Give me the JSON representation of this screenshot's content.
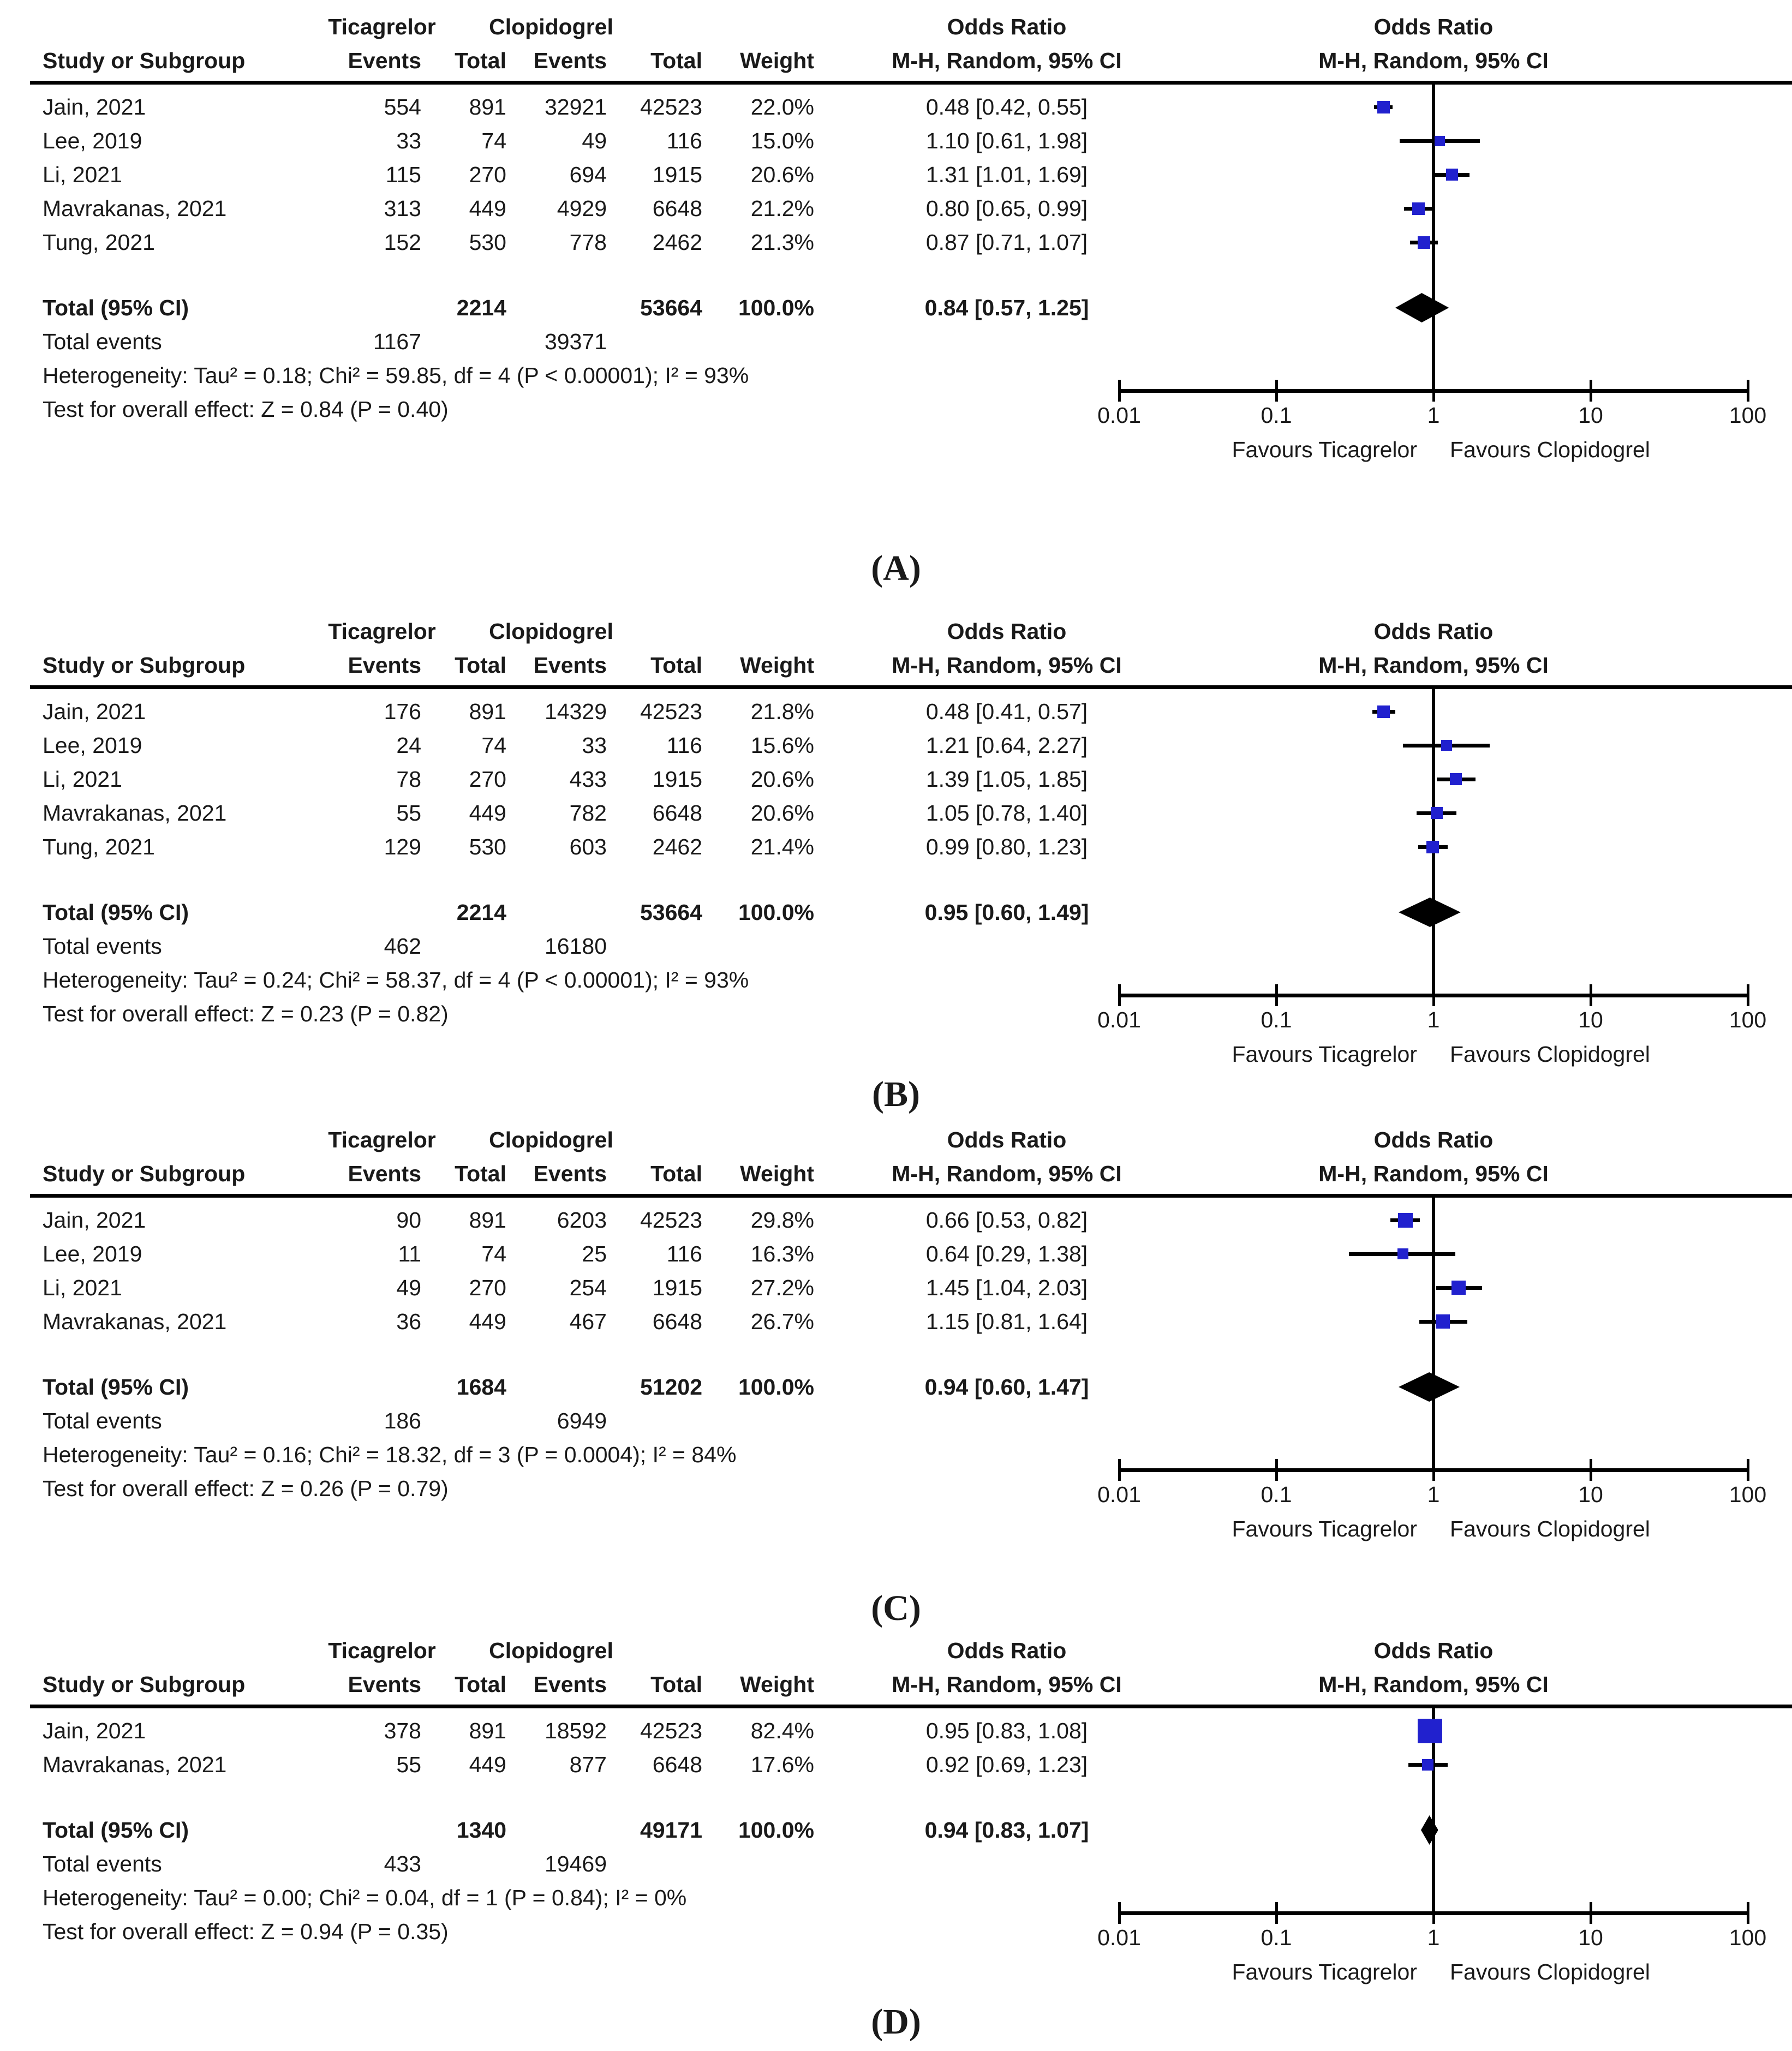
{
  "chart_data": {
    "type": "scatter",
    "subtype": "forest-plot-meta-analysis",
    "x_scale": "log10",
    "x_range": [
      0.01,
      100
    ],
    "x_ticks": [
      "0.01",
      "0.1",
      "1",
      "10",
      "100"
    ],
    "x_tick_values": [
      0.01,
      0.1,
      1,
      10,
      100
    ],
    "colors": {
      "study_square": "#2121ce",
      "summary_diamond": "#000000",
      "lines": "#000000",
      "text": "#1a1a1a"
    },
    "legend_position": "none",
    "grid": false,
    "panels": [
      {
        "label": "(A)",
        "header": {
          "group1": "Ticagrelor",
          "group2": "Clopidogrel",
          "or_col_title": "Odds Ratio",
          "or_plot_title": "Odds Ratio",
          "study_col": "Study or Subgroup",
          "events_col1": "Events",
          "total_col1": "Total",
          "events_col2": "Events",
          "total_col2": "Total",
          "weight_col": "Weight",
          "method_col": "M-H, Random, 95% CI",
          "method_plot": "M-H, Random, 95% CI"
        },
        "studies": [
          {
            "name": "Jain, 2021",
            "tic_events": "554",
            "tic_total": "891",
            "clo_events": "32921",
            "clo_total": "42523",
            "weight_text": "22.0%",
            "weight_pct": 22.0,
            "or": 0.48,
            "ci_low": 0.42,
            "ci_high": 0.55,
            "or_text": "0.48 [0.42, 0.55]"
          },
          {
            "name": "Lee, 2019",
            "tic_events": "33",
            "tic_total": "74",
            "clo_events": "49",
            "clo_total": "116",
            "weight_text": "15.0%",
            "weight_pct": 15.0,
            "or": 1.1,
            "ci_low": 0.61,
            "ci_high": 1.98,
            "or_text": "1.10 [0.61, 1.98]"
          },
          {
            "name": "Li, 2021",
            "tic_events": "115",
            "tic_total": "270",
            "clo_events": "694",
            "clo_total": "1915",
            "weight_text": "20.6%",
            "weight_pct": 20.6,
            "or": 1.31,
            "ci_low": 1.01,
            "ci_high": 1.69,
            "or_text": "1.31 [1.01, 1.69]"
          },
          {
            "name": "Mavrakanas, 2021",
            "tic_events": "313",
            "tic_total": "449",
            "clo_events": "4929",
            "clo_total": "6648",
            "weight_text": "21.2%",
            "weight_pct": 21.2,
            "or": 0.8,
            "ci_low": 0.65,
            "ci_high": 0.99,
            "or_text": "0.80 [0.65, 0.99]"
          },
          {
            "name": "Tung, 2021",
            "tic_events": "152",
            "tic_total": "530",
            "clo_events": "778",
            "clo_total": "2462",
            "weight_text": "21.3%",
            "weight_pct": 21.3,
            "or": 0.87,
            "ci_low": 0.71,
            "ci_high": 1.07,
            "or_text": "0.87 [0.71, 1.07]"
          }
        ],
        "total": {
          "label": "Total (95% CI)",
          "tic_total": "2214",
          "clo_total": "53664",
          "weight_text": "100.0%",
          "or": 0.84,
          "ci_low": 0.57,
          "ci_high": 1.25,
          "or_text": "0.84 [0.57, 1.25]"
        },
        "total_events": {
          "label": "Total events",
          "tic": "1167",
          "clo": "39371"
        },
        "heterogeneity": "Heterogeneity: Tau² = 0.18; Chi² = 59.85, df = 4 (P < 0.00001); I² = 93%",
        "overall_effect": "Test for overall effect: Z = 0.84 (P = 0.40)",
        "favours_left": "Favours Ticagrelor",
        "favours_right": "Favours Clopidogrel"
      },
      {
        "label": "(B)",
        "header": {
          "group1": "Ticagrelor",
          "group2": "Clopidogrel",
          "or_col_title": "Odds Ratio",
          "or_plot_title": "Odds Ratio",
          "study_col": "Study or Subgroup",
          "events_col1": "Events",
          "total_col1": "Total",
          "events_col2": "Events",
          "total_col2": "Total",
          "weight_col": "Weight",
          "method_col": "M-H, Random, 95% CI",
          "method_plot": "M-H, Random, 95% CI"
        },
        "studies": [
          {
            "name": "Jain, 2021",
            "tic_events": "176",
            "tic_total": "891",
            "clo_events": "14329",
            "clo_total": "42523",
            "weight_text": "21.8%",
            "weight_pct": 21.8,
            "or": 0.48,
            "ci_low": 0.41,
            "ci_high": 0.57,
            "or_text": "0.48 [0.41, 0.57]"
          },
          {
            "name": "Lee, 2019",
            "tic_events": "24",
            "tic_total": "74",
            "clo_events": "33",
            "clo_total": "116",
            "weight_text": "15.6%",
            "weight_pct": 15.6,
            "or": 1.21,
            "ci_low": 0.64,
            "ci_high": 2.27,
            "or_text": "1.21 [0.64, 2.27]"
          },
          {
            "name": "Li, 2021",
            "tic_events": "78",
            "tic_total": "270",
            "clo_events": "433",
            "clo_total": "1915",
            "weight_text": "20.6%",
            "weight_pct": 20.6,
            "or": 1.39,
            "ci_low": 1.05,
            "ci_high": 1.85,
            "or_text": "1.39 [1.05, 1.85]"
          },
          {
            "name": "Mavrakanas, 2021",
            "tic_events": "55",
            "tic_total": "449",
            "clo_events": "782",
            "clo_total": "6648",
            "weight_text": "20.6%",
            "weight_pct": 20.6,
            "or": 1.05,
            "ci_low": 0.78,
            "ci_high": 1.4,
            "or_text": "1.05 [0.78, 1.40]"
          },
          {
            "name": "Tung, 2021",
            "tic_events": "129",
            "tic_total": "530",
            "clo_events": "603",
            "clo_total": "2462",
            "weight_text": "21.4%",
            "weight_pct": 21.4,
            "or": 0.99,
            "ci_low": 0.8,
            "ci_high": 1.23,
            "or_text": "0.99 [0.80, 1.23]"
          }
        ],
        "total": {
          "label": "Total (95% CI)",
          "tic_total": "2214",
          "clo_total": "53664",
          "weight_text": "100.0%",
          "or": 0.95,
          "ci_low": 0.6,
          "ci_high": 1.49,
          "or_text": "0.95 [0.60, 1.49]"
        },
        "total_events": {
          "label": "Total events",
          "tic": "462",
          "clo": "16180"
        },
        "heterogeneity": "Heterogeneity: Tau² = 0.24; Chi² = 58.37, df = 4 (P < 0.00001); I² = 93%",
        "overall_effect": "Test for overall effect: Z = 0.23 (P = 0.82)",
        "favours_left": "Favours Ticagrelor",
        "favours_right": "Favours Clopidogrel"
      },
      {
        "label": "(C)",
        "header": {
          "group1": "Ticagrelor",
          "group2": "Clopidogrel",
          "or_col_title": "Odds Ratio",
          "or_plot_title": "Odds Ratio",
          "study_col": "Study or Subgroup",
          "events_col1": "Events",
          "total_col1": "Total",
          "events_col2": "Events",
          "total_col2": "Total",
          "weight_col": "Weight",
          "method_col": "M-H, Random, 95% CI",
          "method_plot": "M-H, Random, 95% CI"
        },
        "studies": [
          {
            "name": "Jain, 2021",
            "tic_events": "90",
            "tic_total": "891",
            "clo_events": "6203",
            "clo_total": "42523",
            "weight_text": "29.8%",
            "weight_pct": 29.8,
            "or": 0.66,
            "ci_low": 0.53,
            "ci_high": 0.82,
            "or_text": "0.66 [0.53, 0.82]"
          },
          {
            "name": "Lee, 2019",
            "tic_events": "11",
            "tic_total": "74",
            "clo_events": "25",
            "clo_total": "116",
            "weight_text": "16.3%",
            "weight_pct": 16.3,
            "or": 0.64,
            "ci_low": 0.29,
            "ci_high": 1.38,
            "or_text": "0.64 [0.29, 1.38]"
          },
          {
            "name": "Li, 2021",
            "tic_events": "49",
            "tic_total": "270",
            "clo_events": "254",
            "clo_total": "1915",
            "weight_text": "27.2%",
            "weight_pct": 27.2,
            "or": 1.45,
            "ci_low": 1.04,
            "ci_high": 2.03,
            "or_text": "1.45 [1.04, 2.03]"
          },
          {
            "name": "Mavrakanas, 2021",
            "tic_events": "36",
            "tic_total": "449",
            "clo_events": "467",
            "clo_total": "6648",
            "weight_text": "26.7%",
            "weight_pct": 26.7,
            "or": 1.15,
            "ci_low": 0.81,
            "ci_high": 1.64,
            "or_text": "1.15 [0.81, 1.64]"
          }
        ],
        "total": {
          "label": "Total (95% CI)",
          "tic_total": "1684",
          "clo_total": "51202",
          "weight_text": "100.0%",
          "or": 0.94,
          "ci_low": 0.6,
          "ci_high": 1.47,
          "or_text": "0.94 [0.60, 1.47]"
        },
        "total_events": {
          "label": "Total events",
          "tic": "186",
          "clo": "6949"
        },
        "heterogeneity": "Heterogeneity: Tau² = 0.16; Chi² = 18.32, df = 3 (P = 0.0004); I² = 84%",
        "overall_effect": "Test for overall effect: Z = 0.26 (P = 0.79)",
        "favours_left": "Favours Ticagrelor",
        "favours_right": "Favours Clopidogrel"
      },
      {
        "label": "(D)",
        "header": {
          "group1": "Ticagrelor",
          "group2": "Clopidogrel",
          "or_col_title": "Odds Ratio",
          "or_plot_title": "Odds Ratio",
          "study_col": "Study or Subgroup",
          "events_col1": "Events",
          "total_col1": "Total",
          "events_col2": "Events",
          "total_col2": "Total",
          "weight_col": "Weight",
          "method_col": "M-H, Random, 95% CI",
          "method_plot": "M-H, Random, 95% CI"
        },
        "studies": [
          {
            "name": "Jain, 2021",
            "tic_events": "378",
            "tic_total": "891",
            "clo_events": "18592",
            "clo_total": "42523",
            "weight_text": "82.4%",
            "weight_pct": 82.4,
            "or": 0.95,
            "ci_low": 0.83,
            "ci_high": 1.08,
            "or_text": "0.95 [0.83, 1.08]"
          },
          {
            "name": "Mavrakanas, 2021",
            "tic_events": "55",
            "tic_total": "449",
            "clo_events": "877",
            "clo_total": "6648",
            "weight_text": "17.6%",
            "weight_pct": 17.6,
            "or": 0.92,
            "ci_low": 0.69,
            "ci_high": 1.23,
            "or_text": "0.92 [0.69, 1.23]"
          }
        ],
        "total": {
          "label": "Total (95% CI)",
          "tic_total": "1340",
          "clo_total": "49171",
          "weight_text": "100.0%",
          "or": 0.94,
          "ci_low": 0.83,
          "ci_high": 1.07,
          "or_text": "0.94 [0.83, 1.07]"
        },
        "total_events": {
          "label": "Total events",
          "tic": "433",
          "clo": "19469"
        },
        "heterogeneity": "Heterogeneity: Tau² = 0.00; Chi² = 0.04, df = 1 (P = 0.84); I² = 0%",
        "overall_effect": "Test for overall effect: Z = 0.94 (P = 0.35)",
        "favours_left": "Favours Ticagrelor",
        "favours_right": "Favours Clopidogrel"
      }
    ]
  }
}
